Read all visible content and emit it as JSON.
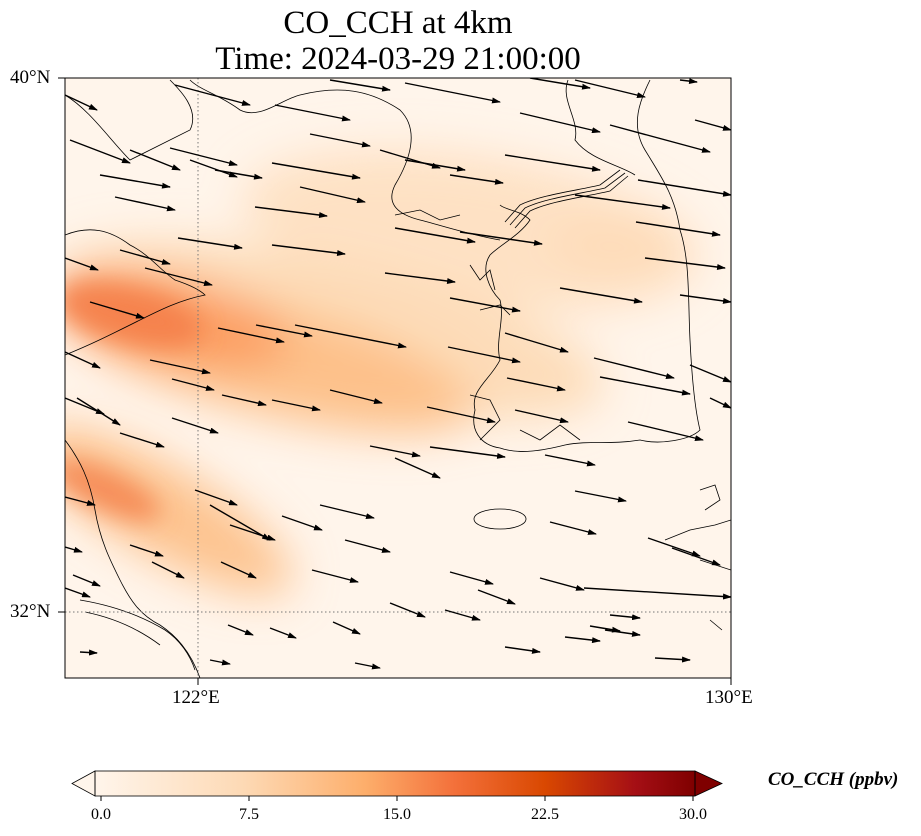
{
  "title": {
    "line1": "CO_CCH at 4km",
    "line2": "Time: 2024-03-29 21:00:00"
  },
  "axes": {
    "lat_labels": [
      "40°N",
      "32°N"
    ],
    "lon_labels": [
      "122°E",
      "130°E"
    ],
    "lon_range": [
      120,
      130
    ],
    "lat_range": [
      31,
      40
    ],
    "gridlines": "dotted"
  },
  "colorbar": {
    "label": "CO_CCH (ppbv)",
    "ticks": [
      "0.0",
      "7.5",
      "15.0",
      "22.5",
      "30.0"
    ],
    "range": [
      0,
      30
    ],
    "colormap": [
      "#fff5eb",
      "#fdd9b4",
      "#fdae6b",
      "#f3703a",
      "#d94801",
      "#a50f15",
      "#7f0000"
    ],
    "extend": "both"
  },
  "colors": {
    "coastline": "#000000",
    "arrow": "#000000"
  }
}
